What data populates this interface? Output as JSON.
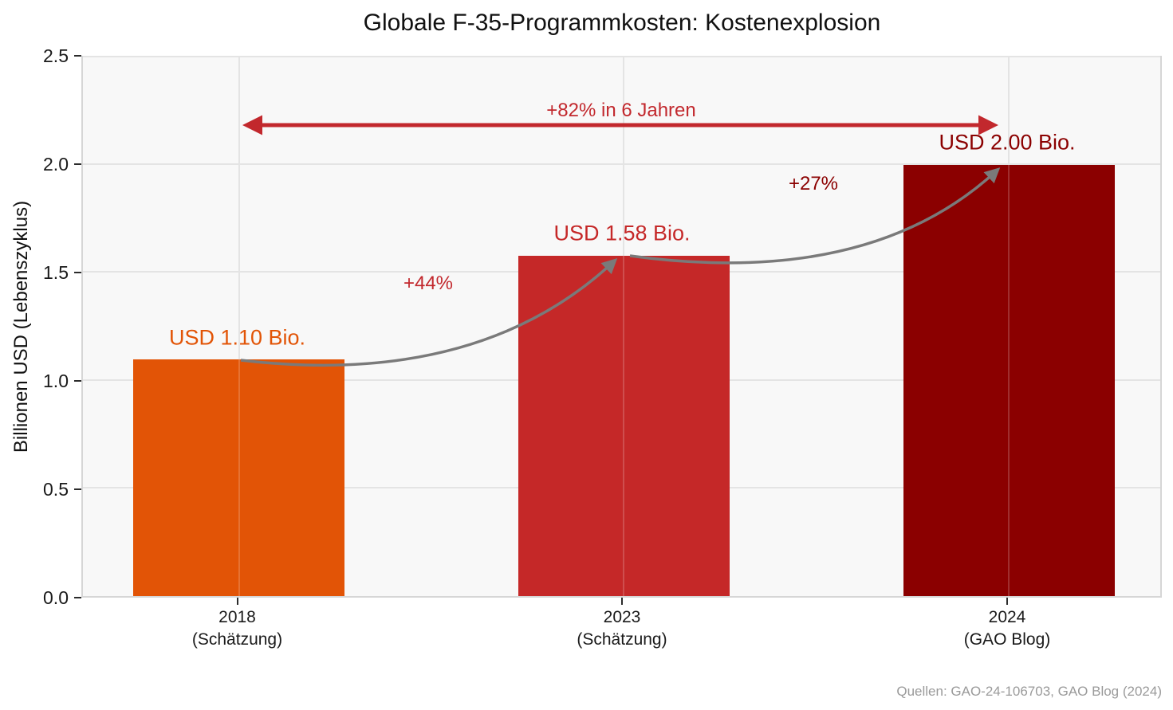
{
  "chart_data": {
    "type": "bar",
    "title": "Globale F-35-Programmkosten: Kostenexplosion",
    "ylabel": "Billionen USD (Lebenszyklus)",
    "xlabel": "",
    "ylim": [
      0,
      2.5
    ],
    "yticks": [
      "0.0",
      "0.5",
      "1.0",
      "1.5",
      "2.0",
      "2.5"
    ],
    "grid": true,
    "legend": false,
    "categories": [
      {
        "year": "2018",
        "detail": "(Schätzung)"
      },
      {
        "year": "2023",
        "detail": "(Schätzung)"
      },
      {
        "year": "2024",
        "detail": "(GAO Blog)"
      }
    ],
    "values": [
      1.1,
      1.58,
      2.0
    ],
    "value_labels": [
      "USD 1.10 Bio.",
      "USD 1.58 Bio.",
      "USD 2.00 Bio."
    ],
    "bar_colors": [
      "#E25406",
      "#C52828",
      "#8B0000"
    ],
    "value_label_colors": [
      "#E25406",
      "#C52828",
      "#8B0000"
    ],
    "annotations": {
      "total_change": "+82% in 6 Jahren",
      "change_1": "+44%",
      "change_2": "+27%"
    },
    "annotation_colors": {
      "total_change": "#C2282D",
      "change_1": "#C2282D",
      "change_2": "#8B0000"
    },
    "arrow_colors": {
      "growth_curve": "#7a7a7a",
      "total_span": "#C2282D"
    },
    "source": "Quellen: GAO-24-106703, GAO Blog (2024)"
  }
}
